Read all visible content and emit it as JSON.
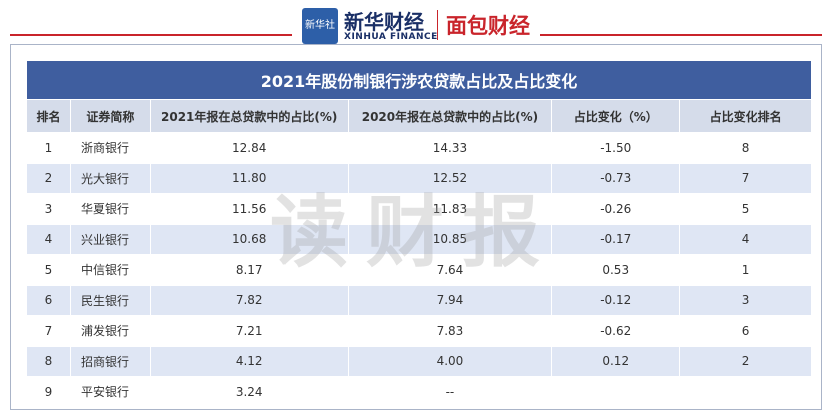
{
  "header": {
    "badge": "新华社",
    "brand": "新华财经",
    "brand_en": "XINHUA FINANCE",
    "partner": "面包财经"
  },
  "table": {
    "title": "2021年股份制银行涉农贷款占比及占比变化",
    "columns": [
      "排名",
      "证券简称",
      "2021年报在总贷款中的占比(%)",
      "2020年报在总贷款中的占比(%)",
      "占比变化（%）",
      "占比变化排名"
    ],
    "rows": [
      [
        "1",
        "浙商银行",
        "12.84",
        "14.33",
        "-1.50",
        "8"
      ],
      [
        "2",
        "光大银行",
        "11.80",
        "12.52",
        "-0.73",
        "7"
      ],
      [
        "3",
        "华夏银行",
        "11.56",
        "11.83",
        "-0.26",
        "5"
      ],
      [
        "4",
        "兴业银行",
        "10.68",
        "10.85",
        "-0.17",
        "4"
      ],
      [
        "5",
        "中信银行",
        "8.17",
        "7.64",
        "0.53",
        "1"
      ],
      [
        "6",
        "民生银行",
        "7.82",
        "7.94",
        "-0.12",
        "3"
      ],
      [
        "7",
        "浦发银行",
        "7.21",
        "7.83",
        "-0.62",
        "6"
      ],
      [
        "8",
        "招商银行",
        "4.12",
        "4.00",
        "0.12",
        "2"
      ],
      [
        "9",
        "平安银行",
        "3.24",
        "--",
        null,
        null
      ]
    ]
  },
  "watermark": "读财报"
}
